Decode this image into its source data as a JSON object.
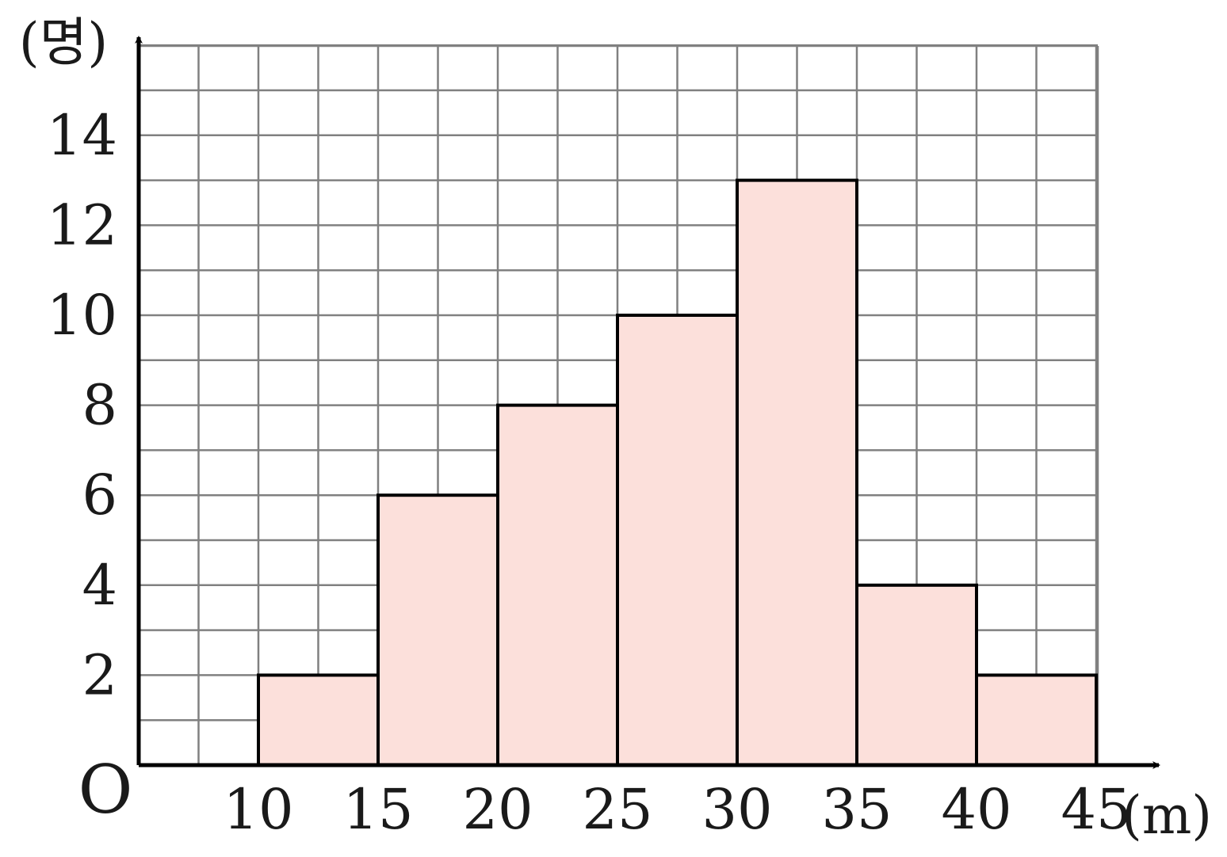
{
  "chart_data": {
    "type": "bar",
    "subtype": "histogram",
    "bins": [
      [
        10,
        15
      ],
      [
        15,
        20
      ],
      [
        20,
        25
      ],
      [
        25,
        30
      ],
      [
        30,
        35
      ],
      [
        35,
        40
      ],
      [
        40,
        45
      ]
    ],
    "values": [
      2,
      6,
      8,
      10,
      13,
      4,
      2
    ],
    "x_ticks": [
      "10",
      "15",
      "20",
      "25",
      "30",
      "35",
      "40",
      "45"
    ],
    "y_ticks": [
      "2",
      "4",
      "6",
      "8",
      "10",
      "12",
      "14"
    ],
    "origin_label": "O",
    "xlabel": "(m)",
    "ylabel": "(명)",
    "xlim": [
      5,
      45
    ],
    "ylim": [
      0,
      16
    ],
    "grid": true,
    "colors": {
      "bar_fill": "#fce0db",
      "bar_stroke": "#000000",
      "grid": "#808080",
      "axis": "#000000"
    }
  }
}
